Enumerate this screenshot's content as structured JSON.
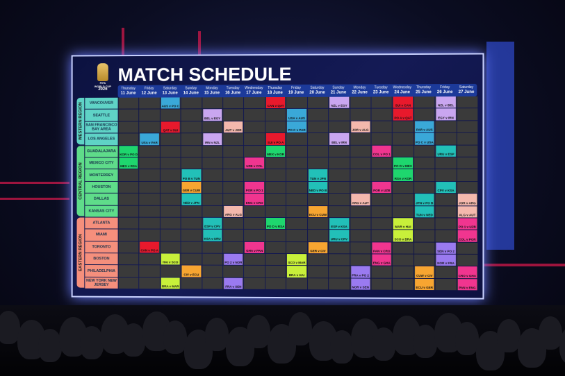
{
  "title": "MATCH SCHEDULE",
  "logo": {
    "text": [
      "FIFA",
      "WORLD CUP",
      "2026"
    ]
  },
  "days": [
    {
      "weekday": "Thursday",
      "date": "11 June"
    },
    {
      "weekday": "Friday",
      "date": "12 June"
    },
    {
      "weekday": "Saturday",
      "date": "13 June"
    },
    {
      "weekday": "Sunday",
      "date": "14 June"
    },
    {
      "weekday": "Monday",
      "date": "15 June"
    },
    {
      "weekday": "Tuesday",
      "date": "16 June"
    },
    {
      "weekday": "Wednesday",
      "date": "17 June"
    },
    {
      "weekday": "Thursday",
      "date": "18 June"
    },
    {
      "weekday": "Friday",
      "date": "19 June"
    },
    {
      "weekday": "Saturday",
      "date": "20 June"
    },
    {
      "weekday": "Sunday",
      "date": "21 June"
    },
    {
      "weekday": "Monday",
      "date": "22 June"
    },
    {
      "weekday": "Tuesday",
      "date": "23 June"
    },
    {
      "weekday": "Wednesday",
      "date": "24 June"
    },
    {
      "weekday": "Thursday",
      "date": "25 June"
    },
    {
      "weekday": "Friday",
      "date": "26 June"
    },
    {
      "weekday": "Saturday",
      "date": "27 June"
    }
  ],
  "regions": [
    {
      "name": "WESTERN REGION",
      "color": "#5fd3c6",
      "cities": [
        {
          "name": "VANCOUVER",
          "matches": [
            {
              "date": "13 June",
              "teams": "AUS v PO C",
              "color": "#3aa8d8"
            },
            {
              "date": "18 June",
              "teams": "CAN v QAT",
              "color": "#e8192c"
            },
            {
              "date": "21 June",
              "teams": "NZL v EGY",
              "color": "#c9a6f0"
            },
            {
              "date": "24 June",
              "teams": "SUI v CAN",
              "color": "#e8192c"
            },
            {
              "date": "26 June",
              "teams": "NZL v BEL",
              "color": "#c9a6f0"
            }
          ]
        },
        {
          "name": "SEATTLE",
          "matches": [
            {
              "date": "15 June",
              "teams": "BEL v EGY",
              "color": "#c9a6f0"
            },
            {
              "date": "19 June",
              "teams": "USA v AUS",
              "color": "#3aa8d8"
            },
            {
              "date": "24 June",
              "teams": "PO A v QAT",
              "color": "#e8192c"
            },
            {
              "date": "26 June",
              "teams": "EGY v IRN",
              "color": "#c9a6f0"
            }
          ]
        },
        {
          "name": "SAN FRANCISCO BAY AREA",
          "matches": [
            {
              "date": "13 June",
              "teams": "QAT v SUI",
              "color": "#e8192c"
            },
            {
              "date": "16 June",
              "teams": "AUT v JOR",
              "color": "#f4b8ad"
            },
            {
              "date": "19 June",
              "teams": "PO C v PAR",
              "color": "#3aa8d8"
            },
            {
              "date": "22 June",
              "teams": "JOR v ALG",
              "color": "#f4b8ad"
            },
            {
              "date": "25 June",
              "teams": "PAR v AUS",
              "color": "#3aa8d8"
            }
          ]
        },
        {
          "name": "LOS ANGELES",
          "matches": [
            {
              "date": "12 June",
              "teams": "USA v PAR",
              "color": "#3aa8d8"
            },
            {
              "date": "15 June",
              "teams": "IRN v NZL",
              "color": "#c9a6f0"
            },
            {
              "date": "18 June",
              "teams": "SUI v PO A",
              "color": "#e8192c"
            },
            {
              "date": "21 June",
              "teams": "BEL v IRN",
              "color": "#c9a6f0"
            },
            {
              "date": "25 June",
              "teams": "PO C v USA",
              "color": "#3aa8d8"
            }
          ]
        }
      ]
    },
    {
      "name": "CENTRAL REGION",
      "color": "#5fdc8a",
      "cities": [
        {
          "name": "GUADALAJARA",
          "matches": [
            {
              "date": "11 June",
              "teams": "KOR v PO D",
              "color": "#1ed66e"
            },
            {
              "date": "18 June",
              "teams": "MEX v KOR",
              "color": "#1ed66e"
            },
            {
              "date": "23 June",
              "teams": "COL v PO 1",
              "color": "#f0358f"
            },
            {
              "date": "26 June",
              "teams": "URU v ESP",
              "color": "#22c0b8"
            }
          ]
        },
        {
          "name": "MEXICO CITY",
          "matches": [
            {
              "date": "11 June",
              "teams": "MEX v RSA",
              "color": "#1ed66e"
            },
            {
              "date": "17 June",
              "teams": "UZB v COL",
              "color": "#f0358f"
            },
            {
              "date": "24 June",
              "teams": "PO D v MEX",
              "color": "#1ed66e"
            }
          ]
        },
        {
          "name": "MONTERREY",
          "matches": [
            {
              "date": "14 June",
              "teams": "PO B v TUN",
              "color": "#22c0b8"
            },
            {
              "date": "20 June",
              "teams": "TUN v JPN",
              "color": "#22c0b8"
            },
            {
              "date": "24 June",
              "teams": "RSA v KOR",
              "color": "#1ed66e"
            }
          ]
        },
        {
          "name": "HOUSTON",
          "matches": [
            {
              "date": "14 June",
              "teams": "GER v CUW",
              "color": "#f7a531"
            },
            {
              "date": "17 June",
              "teams": "POR v PO 1",
              "color": "#f0358f"
            },
            {
              "date": "20 June",
              "teams": "NED v PO B",
              "color": "#22c0b8"
            },
            {
              "date": "23 June",
              "teams": "POR v UZB",
              "color": "#f0358f"
            },
            {
              "date": "26 June",
              "teams": "CPV v KSA",
              "color": "#22c0b8"
            }
          ]
        },
        {
          "name": "DALLAS",
          "matches": [
            {
              "date": "14 June",
              "teams": "NED v JPN",
              "color": "#22c0b8"
            },
            {
              "date": "17 June",
              "teams": "ENG v CRO",
              "color": "#f0358f"
            },
            {
              "date": "22 June",
              "teams": "ARG v AUT",
              "color": "#f4b8ad"
            },
            {
              "date": "25 June",
              "teams": "JPN v PO B",
              "color": "#22c0b8"
            },
            {
              "date": "27 June",
              "teams": "JOR v ARG",
              "color": "#f4b8ad"
            }
          ]
        },
        {
          "name": "KANSAS CITY",
          "matches": [
            {
              "date": "16 June",
              "teams": "ARG v ALG",
              "color": "#f4b8ad"
            },
            {
              "date": "20 June",
              "teams": "ECU v CUW",
              "color": "#f7a531"
            },
            {
              "date": "25 June",
              "teams": "TUN v NED",
              "color": "#22c0b8"
            },
            {
              "date": "27 June",
              "teams": "ALG v AUT",
              "color": "#f4b8ad"
            }
          ]
        }
      ]
    },
    {
      "name": "EASTERN REGION",
      "color": "#f58f7c",
      "cities": [
        {
          "name": "ATLANTA",
          "matches": [
            {
              "date": "15 June",
              "teams": "ESP v CPV",
              "color": "#22c0b8"
            },
            {
              "date": "18 June",
              "teams": "PO D v RSA",
              "color": "#1ed66e"
            },
            {
              "date": "21 June",
              "teams": "ESP v KSA",
              "color": "#22c0b8"
            },
            {
              "date": "24 June",
              "teams": "MAR v HAI",
              "color": "#c8f03a"
            },
            {
              "date": "27 June",
              "teams": "PO 1 v UZB",
              "color": "#f0358f"
            }
          ]
        },
        {
          "name": "MIAMI",
          "matches": [
            {
              "date": "15 June",
              "teams": "KSA v URU",
              "color": "#22c0b8"
            },
            {
              "date": "21 June",
              "teams": "URU v CPV",
              "color": "#22c0b8"
            },
            {
              "date": "24 June",
              "teams": "SCO v BRA",
              "color": "#c8f03a"
            },
            {
              "date": "27 June",
              "teams": "COL v POR",
              "color": "#f0358f"
            }
          ]
        },
        {
          "name": "TORONTO",
          "matches": [
            {
              "date": "12 June",
              "teams": "CAN v PO A",
              "color": "#e8192c"
            },
            {
              "date": "17 June",
              "teams": "GHA v PAN",
              "color": "#f0358f"
            },
            {
              "date": "20 June",
              "teams": "GER v CIV",
              "color": "#f7a531"
            },
            {
              "date": "23 June",
              "teams": "PAN v CRO",
              "color": "#f0358f"
            },
            {
              "date": "26 June",
              "teams": "SEN v PO 2",
              "color": "#9a7af0"
            }
          ]
        },
        {
          "name": "BOSTON",
          "matches": [
            {
              "date": "13 June",
              "teams": "HAI v SCO",
              "color": "#c8f03a"
            },
            {
              "date": "16 June",
              "teams": "PO 2 v NOR",
              "color": "#9a7af0"
            },
            {
              "date": "19 June",
              "teams": "SCO v MAR",
              "color": "#c8f03a"
            },
            {
              "date": "23 June",
              "teams": "ENG v GHA",
              "color": "#f0358f"
            },
            {
              "date": "26 June",
              "teams": "NOR v FRA",
              "color": "#9a7af0"
            }
          ]
        },
        {
          "name": "PHILADELPHIA",
          "matches": [
            {
              "date": "14 June",
              "teams": "CIV v ECU",
              "color": "#f7a531"
            },
            {
              "date": "19 June",
              "teams": "BRA v HAI",
              "color": "#c8f03a"
            },
            {
              "date": "22 June",
              "teams": "FRA v PO 2",
              "color": "#9a7af0"
            },
            {
              "date": "25 June",
              "teams": "CUW v CIV",
              "color": "#f7a531"
            },
            {
              "date": "27 June",
              "teams": "CRO v GHA",
              "color": "#f0358f"
            }
          ]
        },
        {
          "name": "NEW YORK NEW JERSEY",
          "matches": [
            {
              "date": "13 June",
              "teams": "BRA v MAR",
              "color": "#c8f03a"
            },
            {
              "date": "16 June",
              "teams": "FRA v SEN",
              "color": "#9a7af0"
            },
            {
              "date": "22 June",
              "teams": "NOR v SEN",
              "color": "#9a7af0"
            },
            {
              "date": "25 June",
              "teams": "ECU v GER",
              "color": "#f7a531"
            },
            {
              "date": "27 June",
              "teams": "PAN v ENG",
              "color": "#f0358f"
            }
          ]
        }
      ]
    }
  ]
}
